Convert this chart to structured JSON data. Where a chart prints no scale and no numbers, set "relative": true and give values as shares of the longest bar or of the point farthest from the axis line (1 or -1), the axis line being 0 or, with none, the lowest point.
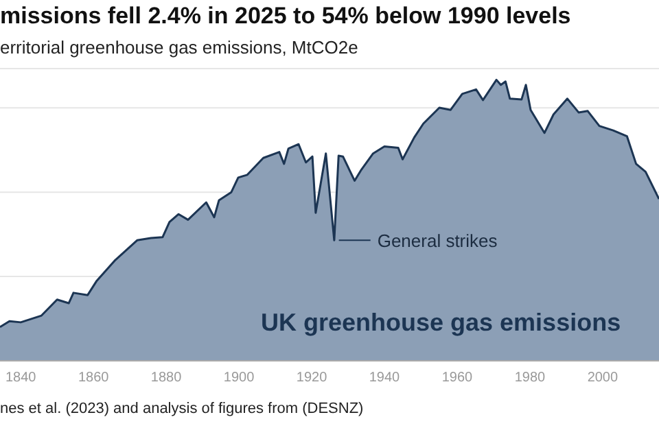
{
  "chart_data": {
    "type": "area",
    "title": "missions fell 2.4% in 2025 to 54% below 1990 levels",
    "subtitle": "erritorial greenhouse gas emissions, MtCO2e",
    "relative": true,
    "grid": "y",
    "xlim": [
      1834.3,
      2015.5
    ],
    "xticks": [
      1840,
      1860,
      1880,
      1900,
      1920,
      1940,
      1960,
      1980,
      2000
    ],
    "annotations": [
      {
        "text": "General strikes",
        "x": 1926.2,
        "y": 0.429
      },
      "nes et al. (2023) and analysis of figures from (DESNZ)"
    ],
    "series": [
      {
        "name": "UK greenhouse gas emissions",
        "color": "#1c3553",
        "x": [
          1834.3,
          1836.9,
          1840,
          1845.7,
          1850,
          1853.2,
          1854.5,
          1858.4,
          1860.8,
          1865.8,
          1872,
          1875.8,
          1879,
          1880.9,
          1883.4,
          1886,
          1891,
          1893.2,
          1894.5,
          1897.9,
          1899.8,
          1902.3,
          1906.7,
          1911.1,
          1912.4,
          1913.6,
          1916.4,
          1918.4,
          1920.2,
          1921.1,
          1923.9,
          1926.2,
          1927.4,
          1928.6,
          1931.8,
          1933.7,
          1936.9,
          1940,
          1943.8,
          1945,
          1948.2,
          1950.7,
          1955.1,
          1958.2,
          1961.4,
          1965.2,
          1967.1,
          1970.8,
          1972,
          1973.3,
          1974.5,
          1977.7,
          1978.9,
          1980.2,
          1984,
          1986.5,
          1990.3,
          1993.4,
          1995.9,
          1999.1,
          2002.9,
          2006.7,
          2009.2,
          2011.8,
          2015.5
        ],
        "values": [
          0.12,
          0.141,
          0.137,
          0.161,
          0.218,
          0.205,
          0.242,
          0.234,
          0.283,
          0.356,
          0.429,
          0.437,
          0.44,
          0.494,
          0.522,
          0.502,
          0.564,
          0.511,
          0.571,
          0.6,
          0.652,
          0.662,
          0.722,
          0.743,
          0.701,
          0.755,
          0.771,
          0.706,
          0.727,
          0.527,
          0.738,
          0.429,
          0.73,
          0.727,
          0.641,
          0.681,
          0.738,
          0.763,
          0.758,
          0.717,
          0.795,
          0.844,
          0.901,
          0.893,
          0.95,
          0.966,
          0.928,
          1,
          0.982,
          0.994,
          0.933,
          0.93,
          0.982,
          0.893,
          0.811,
          0.877,
          0.933,
          0.884,
          0.889,
          0.836,
          0.82,
          0.799,
          0.701,
          0.673,
          0.576
        ]
      }
    ]
  }
}
